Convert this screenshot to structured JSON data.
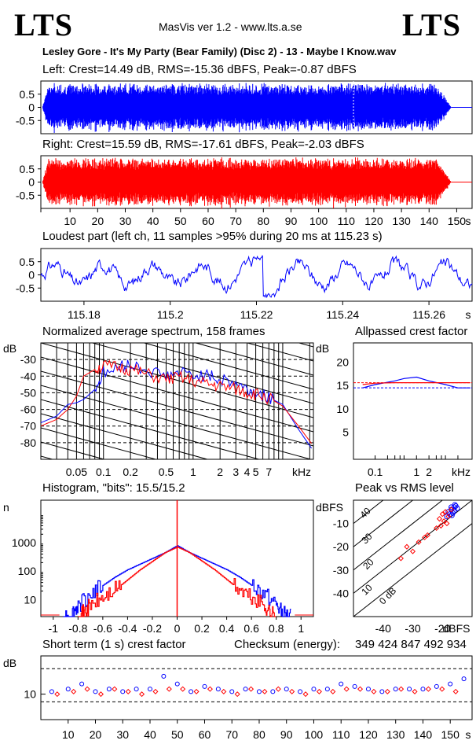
{
  "header": {
    "logo_left": "LTS",
    "logo_right": "LTS",
    "version": "MasVis ver 1.2 - www.lts.a.se",
    "filename": "Lesley Gore - It's My Party (Bear Family) (Disc 2) - 13 - Maybe I Know.wav"
  },
  "colors": {
    "left": "#0000ff",
    "right": "#ff0000",
    "grid": "#000000"
  },
  "chart_data": [
    {
      "type": "area",
      "title": "Left: Crest=14.49 dB, RMS=-15.36 dBFS, Peak=-0.87 dBFS",
      "yticks": [
        "0.5",
        "0",
        "-0.5"
      ],
      "ylim": [
        -1,
        1
      ],
      "duration_s": 155,
      "fade_start_s": 143,
      "fade_end_s": 148,
      "color": "#0000ff"
    },
    {
      "type": "area",
      "title": "Right: Crest=15.59 dB, RMS=-17.61 dBFS, Peak=-2.03 dBFS",
      "yticks": [
        "0.5",
        "0",
        "-0.5"
      ],
      "ylim": [
        -1,
        1
      ],
      "duration_s": 155,
      "fade_start_s": 143,
      "fade_end_s": 148,
      "color": "#ff0000",
      "xticks": [
        "10",
        "20",
        "30",
        "40",
        "50",
        "60",
        "70",
        "80",
        "90",
        "100",
        "110",
        "120",
        "130",
        "140",
        "150",
        "s"
      ]
    },
    {
      "type": "line",
      "title": "Loudest part (left  ch, 11 samples >95% during 20 ms at 115.23 s)",
      "yticks": [
        "0.5",
        "0",
        "-0.5"
      ],
      "xticks": [
        "115.18",
        "115.2",
        "115.22",
        "115.24",
        "115.26",
        "s"
      ],
      "xlim": [
        115.17,
        115.27
      ],
      "ylim": [
        -1,
        1
      ]
    },
    {
      "type": "line",
      "title": "Normalized average spectrum, 158 frames",
      "ylabel": "dB",
      "yticks": [
        "-30",
        "-40",
        "-50",
        "-60",
        "-70",
        "-80"
      ],
      "xticks": [
        "0.05",
        "0.1",
        "0.2",
        "0.5",
        "1",
        "2",
        "3",
        "4",
        "5",
        "7",
        "kHz"
      ],
      "xlim_khz": [
        0.02,
        22
      ],
      "ylim": [
        -90,
        -20
      ],
      "series": [
        {
          "name": "left",
          "x_khz": [
            0.02,
            0.03,
            0.04,
            0.05,
            0.06,
            0.08,
            0.1,
            0.15,
            0.2,
            0.3,
            0.5,
            0.7,
            1,
            1.5,
            2,
            3,
            4,
            5,
            7,
            10,
            15,
            22
          ],
          "y_db": [
            -68,
            -64,
            -57,
            -56,
            -54,
            -48,
            -38,
            -35,
            -33,
            -36,
            -40,
            -38,
            -39,
            -40,
            -42,
            -44,
            -48,
            -50,
            -53,
            -57,
            -72,
            -85
          ]
        },
        {
          "name": "right",
          "x_khz": [
            0.02,
            0.03,
            0.04,
            0.05,
            0.06,
            0.08,
            0.1,
            0.15,
            0.2,
            0.3,
            0.5,
            0.7,
            1,
            1.5,
            2,
            3,
            4,
            5,
            7,
            10,
            15,
            22
          ],
          "y_db": [
            -70,
            -66,
            -60,
            -52,
            -40,
            -36,
            -34,
            -35,
            -36,
            -39,
            -42,
            -41,
            -43,
            -45,
            -46,
            -48,
            -50,
            -51,
            -53,
            -58,
            -70,
            -82
          ]
        }
      ]
    },
    {
      "type": "line",
      "title": "Allpassed crest factor",
      "ylabel": "dB",
      "yticks": [
        "20",
        "15",
        "10",
        "5"
      ],
      "xticks": [
        "0.1",
        "1",
        "2",
        "kHz"
      ],
      "ylim": [
        0,
        25
      ],
      "series": [
        {
          "name": "left",
          "x_khz": [
            0.05,
            0.1,
            0.3,
            0.5,
            1,
            2,
            5,
            10,
            20
          ],
          "y_db": [
            14.5,
            15.2,
            16.0,
            16.5,
            16.8,
            16.0,
            15.2,
            14.5,
            14.5
          ]
        },
        {
          "name": "right",
          "x_khz": [
            0.05,
            0.1,
            0.3,
            0.5,
            1,
            2,
            5,
            10,
            20
          ],
          "y_db": [
            15.2,
            15.5,
            15.6,
            15.6,
            15.6,
            15.6,
            15.6,
            15.6,
            15.6
          ]
        }
      ],
      "ref_left": 14.5,
      "ref_right": 15.6
    },
    {
      "type": "line",
      "title": "Histogram, \"bits\": 15.5/15.2",
      "ylabel": "n",
      "yticks": [
        "1000",
        "100",
        "10"
      ],
      "xticks": [
        "-1",
        "-0.8",
        "-0.6",
        "-0.4",
        "-0.2",
        "0",
        "0.2",
        "0.4",
        "0.6",
        "0.8",
        "1"
      ],
      "xlim": [
        -1.1,
        1.1
      ],
      "ylim_log10": [
        0.4,
        4.5
      ],
      "series": [
        {
          "name": "left",
          "x": [
            -0.92,
            -0.85,
            -0.8,
            -0.7,
            -0.6,
            -0.5,
            -0.4,
            -0.3,
            -0.2,
            -0.1,
            0,
            0.1,
            0.2,
            0.3,
            0.4,
            0.5,
            0.6,
            0.7,
            0.8,
            0.85,
            0.92
          ],
          "log10n": [
            0.4,
            0.5,
            0.8,
            1.2,
            1.5,
            1.8,
            2.05,
            2.25,
            2.45,
            2.65,
            2.9,
            2.65,
            2.45,
            2.25,
            2.05,
            1.8,
            1.5,
            1.2,
            0.8,
            0.5,
            0.4
          ]
        },
        {
          "name": "right",
          "x": [
            -0.8,
            -0.75,
            -0.7,
            -0.6,
            -0.5,
            -0.4,
            -0.3,
            -0.2,
            -0.1,
            0,
            0.1,
            0.2,
            0.3,
            0.4,
            0.5,
            0.6,
            0.7,
            0.75,
            0.8
          ],
          "log10n": [
            0.4,
            0.55,
            0.8,
            1.05,
            1.35,
            1.7,
            2.05,
            2.35,
            2.65,
            2.85,
            2.65,
            2.35,
            2.05,
            1.7,
            1.35,
            1.05,
            0.8,
            0.55,
            0.4
          ]
        }
      ]
    },
    {
      "type": "scatter",
      "title": "Peak vs RMS level",
      "ylabel": "dBFS",
      "xlabel": "dBFS",
      "yticks": [
        "-10",
        "-20",
        "-30",
        "-40"
      ],
      "xticks": [
        "-40",
        "-30",
        "-20"
      ],
      "xlim": [
        -50,
        -10
      ],
      "ylim": [
        -50,
        0
      ],
      "diagonal_labels": [
        "40",
        "30",
        "20",
        "10",
        "0 dB"
      ],
      "series": [
        {
          "name": "left",
          "x": [
            -18,
            -17,
            -16,
            -15.5,
            -17.5,
            -16.5,
            -15,
            -18.5,
            -16,
            -17,
            -15.8,
            -16.8
          ],
          "y": [
            -5,
            -4,
            -3,
            -2.5,
            -6,
            -5.5,
            -3.5,
            -7,
            -4.5,
            -3,
            -2,
            -6.5
          ]
        },
        {
          "name": "right",
          "x": [
            -20,
            -19,
            -18,
            -17,
            -21,
            -19.5,
            -18.5,
            -22,
            -25,
            -28,
            -32,
            -34,
            -30,
            -26,
            -20.5
          ],
          "y": [
            -6,
            -5,
            -7,
            -4,
            -8,
            -9,
            -10,
            -12,
            -15,
            -18,
            -20,
            -25,
            -22,
            -16,
            -11
          ]
        }
      ]
    },
    {
      "type": "scatter",
      "title": "Short term (1 s) crest factor",
      "ylabel": "dB",
      "yticks": [
        "10"
      ],
      "xticks": [
        "10",
        "20",
        "30",
        "40",
        "50",
        "60",
        "70",
        "80",
        "90",
        "100",
        "110",
        "120",
        "130",
        "140",
        "150",
        "s"
      ],
      "xlim": [
        0,
        158
      ],
      "ylim": [
        0,
        25
      ],
      "ref_lines": [
        20,
        7
      ],
      "series": [
        {
          "name": "left",
          "x": [
            4,
            10,
            15,
            20,
            25,
            30,
            35,
            40,
            45,
            50,
            55,
            60,
            65,
            70,
            75,
            80,
            85,
            90,
            95,
            100,
            105,
            110,
            115,
            120,
            125,
            130,
            135,
            140,
            145,
            150,
            155
          ],
          "y": [
            11,
            12,
            14,
            11,
            12,
            11,
            12,
            12,
            17,
            14,
            11,
            13,
            12,
            11,
            12,
            11,
            11,
            12,
            11,
            12,
            12,
            14,
            13,
            12,
            11,
            12,
            12,
            12,
            13,
            14,
            16
          ]
        },
        {
          "name": "right",
          "x": [
            6,
            12,
            17,
            22,
            27,
            32,
            37,
            42,
            47,
            52,
            57,
            62,
            67,
            72,
            77,
            82,
            87,
            92,
            97,
            102,
            107,
            112,
            117,
            122,
            127,
            132,
            137,
            142,
            147,
            152
          ],
          "y": [
            10,
            11,
            12,
            10,
            12,
            11,
            10,
            11,
            12,
            12,
            11,
            12,
            11,
            10,
            12,
            11,
            12,
            11,
            10,
            11,
            11,
            12,
            12,
            11,
            11,
            12,
            11,
            12,
            12,
            11
          ]
        }
      ]
    }
  ],
  "checksum_label": "Checksum (energy):",
  "checksum_value": "349 424 847 492 934"
}
